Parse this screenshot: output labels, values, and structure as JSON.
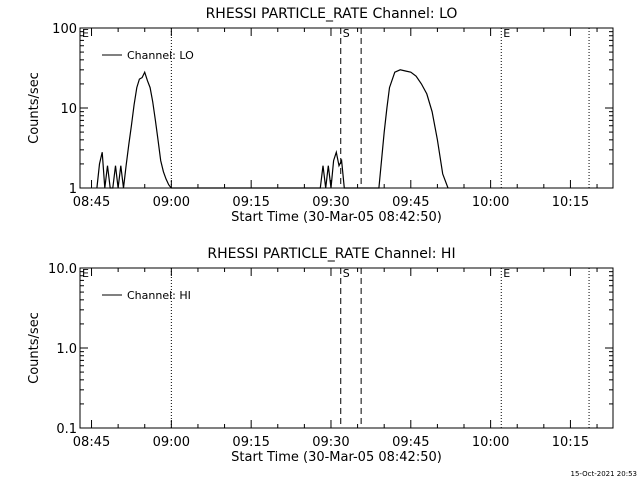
{
  "footer": {
    "timestamp": "15-Oct-2021 20:53"
  },
  "chart_data": [
    {
      "type": "line",
      "title": "RHESSI PARTICLE_RATE Channel: LO",
      "xlabel": "Start Time (30-Mar-05 08:42:50)",
      "ylabel": "Counts/sec",
      "yscale": "log",
      "ylim": [
        1,
        100
      ],
      "yticks": [
        1,
        10,
        100
      ],
      "ytick_labels": [
        "1",
        "10",
        "100"
      ],
      "xlim": [
        "08:42:50",
        "10:23:00"
      ],
      "xticks": [
        "08:45",
        "09:00",
        "09:15",
        "09:30",
        "09:45",
        "10:00",
        "10:15"
      ],
      "legend": {
        "entry": "Channel: LO",
        "position": "top-left"
      },
      "markers": [
        {
          "label": "E",
          "time": "08:42:50",
          "style": "dotted"
        },
        {
          "label": "",
          "time": "09:00:00",
          "style": "dotted"
        },
        {
          "label": "S",
          "time": "09:31:50",
          "style": "dashed"
        },
        {
          "label": "",
          "time": "09:35:40",
          "style": "dashed"
        },
        {
          "label": "E",
          "time": "10:02:00",
          "style": "dotted"
        },
        {
          "label": "",
          "time": "10:18:30",
          "style": "dotted"
        }
      ],
      "series": [
        {
          "name": "Channel: LO",
          "x": [
            "08:46:00",
            "08:46:30",
            "08:47:00",
            "08:47:30",
            "08:48:00",
            "08:48:30",
            "08:49:00",
            "08:49:30",
            "08:50:00",
            "08:50:30",
            "08:51:00",
            "08:51:30",
            "08:52:00",
            "08:52:30",
            "08:53:00",
            "08:53:30",
            "08:54:00",
            "08:54:30",
            "08:55:00",
            "08:55:30",
            "08:56:00",
            "08:56:30",
            "08:57:00",
            "08:57:30",
            "08:58:00",
            "08:58:30",
            "08:59:00",
            "08:59:30",
            "09:00:00",
            "09:28:00",
            "09:28:30",
            "09:29:00",
            "09:29:30",
            "09:30:00",
            "09:30:30",
            "09:31:00",
            "09:31:30",
            "09:32:00",
            "09:32:30",
            "09:33:00",
            "09:33:30",
            "09:34:00",
            "09:35:30",
            "09:37:00",
            "09:38:00",
            "09:39:00",
            "09:40:00",
            "09:40:30",
            "09:41:00",
            "09:42:00",
            "09:43:00",
            "09:44:00",
            "09:45:00",
            "09:46:00",
            "09:47:00",
            "09:48:00",
            "09:49:00",
            "09:50:00",
            "09:51:00",
            "09:52:00"
          ],
          "y": [
            1.0,
            2.0,
            2.8,
            1.0,
            1.9,
            1.0,
            1.0,
            1.9,
            1.0,
            1.9,
            1.0,
            1.9,
            3.5,
            6.0,
            11.0,
            18.0,
            23.0,
            24.0,
            28.0,
            22.0,
            18.0,
            12.0,
            7.0,
            4.0,
            2.2,
            1.6,
            1.3,
            1.1,
            1.0,
            1.0,
            1.9,
            1.0,
            1.9,
            1.0,
            2.2,
            2.8,
            1.9,
            2.2,
            1.0,
            1.0,
            1.0,
            1.0,
            1.0,
            1.0,
            1.0,
            1.0,
            5.0,
            10.0,
            18.0,
            28.0,
            30.0,
            29.0,
            28.0,
            25.0,
            20.0,
            15.0,
            9.0,
            4.0,
            1.5,
            1.0
          ]
        }
      ]
    },
    {
      "type": "line",
      "title": "RHESSI PARTICLE_RATE Channel: HI",
      "xlabel": "Start Time (30-Mar-05 08:42:50)",
      "ylabel": "Counts/sec",
      "yscale": "log",
      "ylim": [
        0.1,
        10
      ],
      "yticks": [
        0.1,
        1,
        10
      ],
      "ytick_labels": [
        "0.1",
        "1.0",
        "10.0"
      ],
      "xlim": [
        "08:42:50",
        "10:23:00"
      ],
      "xticks": [
        "08:45",
        "09:00",
        "09:15",
        "09:30",
        "09:45",
        "10:00",
        "10:15"
      ],
      "legend": {
        "entry": "Channel: HI",
        "position": "top-left"
      },
      "markers": [
        {
          "label": "E",
          "time": "08:42:50",
          "style": "dotted"
        },
        {
          "label": "",
          "time": "09:00:00",
          "style": "dotted"
        },
        {
          "label": "S",
          "time": "09:31:50",
          "style": "dashed"
        },
        {
          "label": "",
          "time": "09:35:40",
          "style": "dashed"
        },
        {
          "label": "E",
          "time": "10:02:00",
          "style": "dotted"
        },
        {
          "label": "",
          "time": "10:18:30",
          "style": "dotted"
        }
      ],
      "series": [
        {
          "name": "Channel: HI",
          "x": [],
          "y": []
        }
      ]
    }
  ]
}
